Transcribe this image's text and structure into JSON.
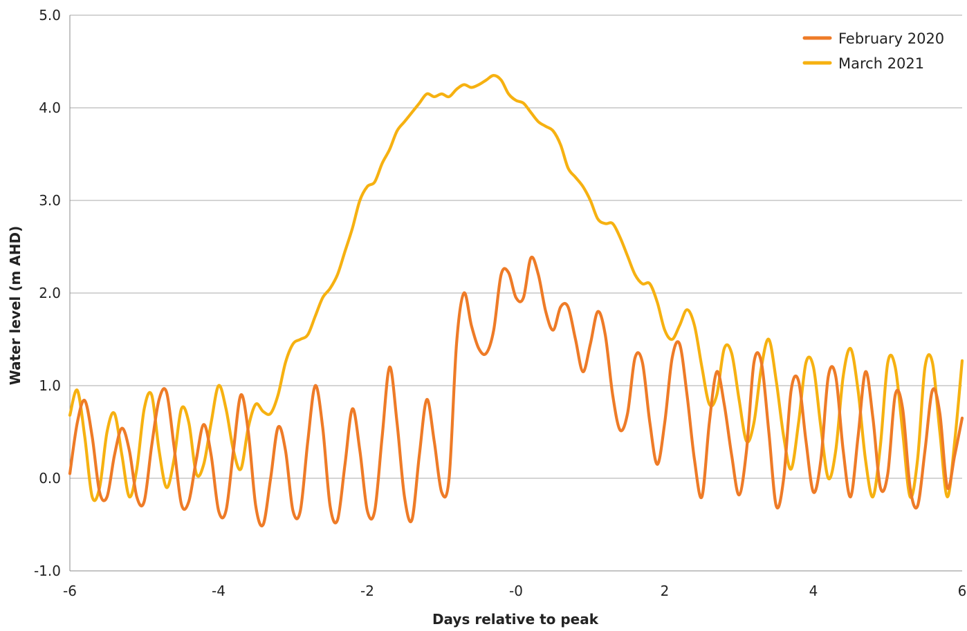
{
  "chart_data": {
    "type": "line",
    "xlabel": "Days relative to peak",
    "ylabel": "Water level (m AHD)",
    "xlim": [
      -6,
      6
    ],
    "ylim": [
      -1.0,
      5.0
    ],
    "x_ticks": [
      {
        "value": -6,
        "label": "-6"
      },
      {
        "value": -4,
        "label": "-4"
      },
      {
        "value": -2,
        "label": "-2"
      },
      {
        "value": 0,
        "label": "-0"
      },
      {
        "value": 2,
        "label": "2"
      },
      {
        "value": 4,
        "label": "4"
      },
      {
        "value": 6,
        "label": "6"
      }
    ],
    "y_ticks": [
      {
        "value": -1,
        "label": "-1.0"
      },
      {
        "value": 0,
        "label": "0.0"
      },
      {
        "value": 1,
        "label": "1.0"
      },
      {
        "value": 2,
        "label": "2.0"
      },
      {
        "value": 3,
        "label": "3.0"
      },
      {
        "value": 4,
        "label": "4.0"
      },
      {
        "value": 5,
        "label": "5.0"
      }
    ],
    "grid": "horizontal",
    "legend_position": "top-right",
    "series": [
      {
        "name": "February 2020",
        "color": "#EE7B27",
        "x": [
          -6.0,
          -5.9,
          -5.8,
          -5.7,
          -5.6,
          -5.5,
          -5.4,
          -5.3,
          -5.2,
          -5.1,
          -5.0,
          -4.9,
          -4.8,
          -4.7,
          -4.6,
          -4.5,
          -4.4,
          -4.3,
          -4.2,
          -4.1,
          -4.0,
          -3.9,
          -3.8,
          -3.7,
          -3.6,
          -3.5,
          -3.4,
          -3.3,
          -3.2,
          -3.1,
          -3.0,
          -2.9,
          -2.8,
          -2.7,
          -2.6,
          -2.5,
          -2.4,
          -2.3,
          -2.2,
          -2.1,
          -2.0,
          -1.9,
          -1.8,
          -1.7,
          -1.6,
          -1.5,
          -1.4,
          -1.3,
          -1.2,
          -1.1,
          -1.0,
          -0.9,
          -0.8,
          -0.7,
          -0.6,
          -0.5,
          -0.4,
          -0.3,
          -0.2,
          -0.1,
          0.0,
          0.1,
          0.2,
          0.3,
          0.4,
          0.5,
          0.6,
          0.7,
          0.8,
          0.9,
          1.0,
          1.1,
          1.2,
          1.3,
          1.4,
          1.5,
          1.6,
          1.7,
          1.8,
          1.9,
          2.0,
          2.1,
          2.2,
          2.3,
          2.4,
          2.5,
          2.6,
          2.7,
          2.8,
          2.9,
          3.0,
          3.1,
          3.2,
          3.3,
          3.4,
          3.5,
          3.6,
          3.7,
          3.8,
          3.9,
          4.0,
          4.1,
          4.2,
          4.3,
          4.4,
          4.5,
          4.6,
          4.7,
          4.8,
          4.9,
          5.0,
          5.1,
          5.2,
          5.3,
          5.4,
          5.5,
          5.6,
          5.7,
          5.8,
          5.9,
          6.0
        ],
        "values": [
          0.05,
          0.6,
          0.84,
          0.45,
          -0.15,
          -0.2,
          0.25,
          0.54,
          0.3,
          -0.2,
          -0.25,
          0.35,
          0.85,
          0.93,
          0.35,
          -0.28,
          -0.25,
          0.2,
          0.58,
          0.25,
          -0.35,
          -0.35,
          0.3,
          0.9,
          0.5,
          -0.3,
          -0.5,
          0.0,
          0.55,
          0.3,
          -0.35,
          -0.35,
          0.4,
          1.0,
          0.55,
          -0.3,
          -0.45,
          0.15,
          0.75,
          0.3,
          -0.35,
          -0.35,
          0.45,
          1.2,
          0.6,
          -0.2,
          -0.45,
          0.25,
          0.85,
          0.4,
          -0.15,
          0.0,
          1.45,
          2.0,
          1.65,
          1.4,
          1.35,
          1.6,
          2.2,
          2.22,
          1.95,
          1.95,
          2.38,
          2.2,
          1.8,
          1.6,
          1.85,
          1.85,
          1.5,
          1.15,
          1.45,
          1.8,
          1.55,
          0.9,
          0.52,
          0.7,
          1.3,
          1.25,
          0.6,
          0.15,
          0.6,
          1.3,
          1.45,
          0.9,
          0.2,
          -0.2,
          0.6,
          1.15,
          0.8,
          0.25,
          -0.18,
          0.3,
          1.25,
          1.25,
          0.5,
          -0.3,
          0.0,
          0.95,
          1.05,
          0.4,
          -0.15,
          0.2,
          1.1,
          1.1,
          0.3,
          -0.2,
          0.45,
          1.15,
          0.65,
          -0.1,
          0.05,
          0.9,
          0.75,
          -0.1,
          -0.3,
          0.3,
          0.95,
          0.7,
          -0.1,
          0.25,
          0.65
        ]
      },
      {
        "name": "March 2021",
        "color": "#F6B111",
        "x": [
          -6.0,
          -5.9,
          -5.8,
          -5.7,
          -5.6,
          -5.5,
          -5.4,
          -5.3,
          -5.2,
          -5.1,
          -5.0,
          -4.9,
          -4.8,
          -4.7,
          -4.6,
          -4.5,
          -4.4,
          -4.3,
          -4.2,
          -4.1,
          -4.0,
          -3.9,
          -3.8,
          -3.7,
          -3.6,
          -3.5,
          -3.4,
          -3.3,
          -3.2,
          -3.1,
          -3.0,
          -2.9,
          -2.8,
          -2.7,
          -2.6,
          -2.5,
          -2.4,
          -2.3,
          -2.2,
          -2.1,
          -2.0,
          -1.9,
          -1.8,
          -1.7,
          -1.6,
          -1.5,
          -1.4,
          -1.3,
          -1.2,
          -1.1,
          -1.0,
          -0.9,
          -0.8,
          -0.7,
          -0.6,
          -0.5,
          -0.4,
          -0.3,
          -0.2,
          -0.1,
          0.0,
          0.1,
          0.2,
          0.3,
          0.4,
          0.5,
          0.6,
          0.7,
          0.8,
          0.9,
          1.0,
          1.1,
          1.2,
          1.3,
          1.4,
          1.5,
          1.6,
          1.7,
          1.8,
          1.9,
          2.0,
          2.1,
          2.2,
          2.3,
          2.4,
          2.5,
          2.6,
          2.7,
          2.8,
          2.9,
          3.0,
          3.1,
          3.2,
          3.3,
          3.4,
          3.5,
          3.6,
          3.7,
          3.8,
          3.9,
          4.0,
          4.1,
          4.2,
          4.3,
          4.4,
          4.5,
          4.6,
          4.7,
          4.8,
          4.9,
          5.0,
          5.1,
          5.2,
          5.3,
          5.4,
          5.5,
          5.6,
          5.7,
          5.8,
          5.9,
          6.0
        ],
        "values": [
          0.68,
          0.95,
          0.45,
          -0.2,
          -0.1,
          0.5,
          0.7,
          0.25,
          -0.2,
          0.1,
          0.75,
          0.9,
          0.3,
          -0.1,
          0.2,
          0.75,
          0.6,
          0.05,
          0.15,
          0.6,
          1.0,
          0.75,
          0.3,
          0.1,
          0.55,
          0.8,
          0.72,
          0.7,
          0.9,
          1.25,
          1.45,
          1.5,
          1.55,
          1.75,
          1.95,
          2.05,
          2.2,
          2.45,
          2.7,
          3.0,
          3.15,
          3.2,
          3.4,
          3.55,
          3.75,
          3.85,
          3.95,
          4.05,
          4.15,
          4.12,
          4.15,
          4.12,
          4.2,
          4.25,
          4.22,
          4.25,
          4.3,
          4.35,
          4.3,
          4.15,
          4.08,
          4.05,
          3.95,
          3.85,
          3.8,
          3.75,
          3.6,
          3.35,
          3.25,
          3.15,
          3.0,
          2.8,
          2.75,
          2.75,
          2.6,
          2.4,
          2.2,
          2.1,
          2.1,
          1.9,
          1.6,
          1.5,
          1.65,
          1.82,
          1.65,
          1.2,
          0.8,
          0.9,
          1.4,
          1.35,
          0.85,
          0.4,
          0.6,
          1.2,
          1.5,
          1.05,
          0.45,
          0.1,
          0.6,
          1.25,
          1.2,
          0.55,
          0.0,
          0.3,
          1.1,
          1.4,
          0.95,
          0.2,
          -0.2,
          0.35,
          1.25,
          1.2,
          0.5,
          -0.2,
          0.2,
          1.2,
          1.25,
          0.5,
          -0.2,
          0.4,
          1.27
        ]
      }
    ]
  }
}
